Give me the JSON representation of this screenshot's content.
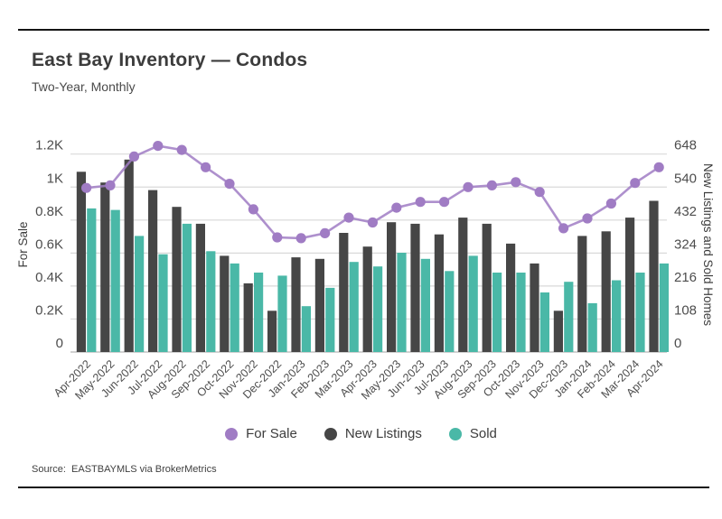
{
  "header": {
    "title": "East Bay Inventory — Condos",
    "subtitle": "Two-Year, Monthly"
  },
  "source": "Source:  EASTBAYMLS via BrokerMetrics",
  "colors": {
    "for_sale": "#a07cc4",
    "new_listings": "#464646",
    "sold": "#4ab8a7",
    "gridline": "#d9d9d9",
    "axis_line": "#c2c2c2",
    "tick_text": "#4d4d4d",
    "axis_title_text": "#3c3c3c"
  },
  "chart_data": {
    "type": "combo-line-bar",
    "categories": [
      "Apr-2022",
      "May-2022",
      "Jun-2022",
      "Jul-2022",
      "Aug-2022",
      "Sep-2022",
      "Oct-2022",
      "Nov-2022",
      "Dec-2022",
      "Jan-2023",
      "Feb-2023",
      "Mar-2023",
      "Apr-2023",
      "May-2023",
      "Jun-2023",
      "Jul-2023",
      "Aug-2023",
      "Sep-2023",
      "Oct-2023",
      "Nov-2023",
      "Dec-2023",
      "Jan-2024",
      "Feb-2024",
      "Mar-2024",
      "Apr-2024"
    ],
    "series": [
      {
        "name": "For Sale",
        "type": "line",
        "axis": "left",
        "color_key": "for_sale",
        "values": [
          995,
          1010,
          1185,
          1250,
          1225,
          1120,
          1020,
          865,
          695,
          690,
          720,
          815,
          785,
          875,
          910,
          910,
          1000,
          1010,
          1030,
          970,
          750,
          810,
          900,
          1025,
          1120
        ]
      },
      {
        "name": "New Listings",
        "type": "bar",
        "axis": "right",
        "color_key": "new_listings",
        "values": [
          590,
          555,
          630,
          530,
          475,
          420,
          315,
          225,
          135,
          310,
          305,
          390,
          345,
          425,
          420,
          385,
          440,
          420,
          355,
          290,
          135,
          380,
          395,
          440,
          495
        ]
      },
      {
        "name": "Sold",
        "type": "bar",
        "axis": "right",
        "color_key": "sold",
        "values": [
          470,
          465,
          380,
          320,
          420,
          330,
          290,
          260,
          250,
          150,
          210,
          295,
          280,
          325,
          305,
          265,
          315,
          260,
          260,
          195,
          230,
          160,
          235,
          260,
          290
        ]
      }
    ],
    "left_axis": {
      "label": "For Sale",
      "tick_labels": [
        "0",
        "0.2K",
        "0.4K",
        "0.6K",
        "0.8K",
        "1K",
        "1.2K"
      ],
      "min": 0,
      "max": 1200
    },
    "right_axis": {
      "label": "New Listings and Sold Homes",
      "tick_labels": [
        "0",
        "108",
        "216",
        "324",
        "432",
        "540",
        "648"
      ],
      "min": 0,
      "max": 648
    },
    "grid": true,
    "legend_position": "bottom"
  }
}
